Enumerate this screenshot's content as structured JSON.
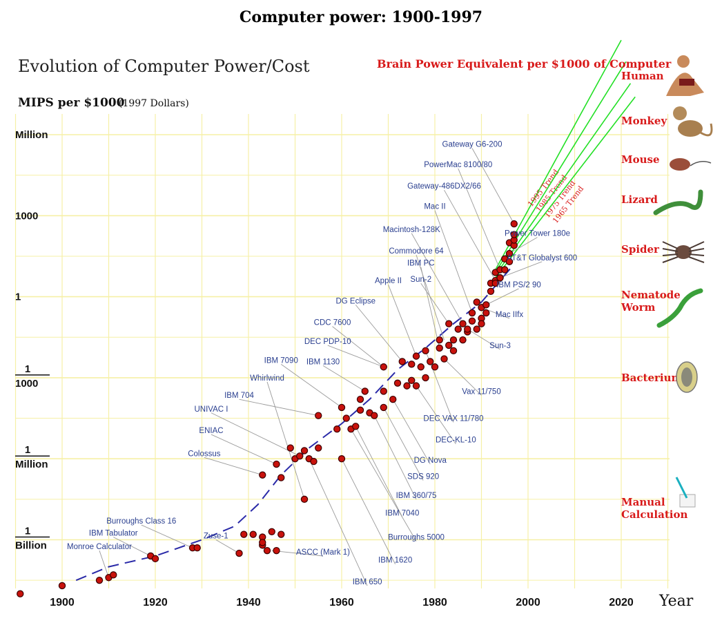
{
  "page_title": "Computer power: 1900-1997",
  "chart_data": {
    "type": "scatter",
    "title": "Evolution of Computer Power/Cost",
    "ylabel": "MIPS per $1000",
    "ylabel_note": "(1997 Dollars)",
    "xlabel": "Year",
    "xlim": [
      1891,
      2030
    ],
    "ylim_log10": [
      -11,
      6.5
    ],
    "y_scale": "log",
    "grid": true,
    "x_ticks": [
      1900,
      1920,
      1940,
      1960,
      1980,
      2000,
      2020
    ],
    "y_ticks": [
      {
        "value": 1000000,
        "label_num": "",
        "label_den": "Million"
      },
      {
        "value": 1000,
        "label_num": "",
        "label_den": "1000"
      },
      {
        "value": 1,
        "label_num": "",
        "label_den": "1"
      },
      {
        "value": 0.001,
        "label_num": "1",
        "label_den": "1000"
      },
      {
        "value": 1e-06,
        "label_num": "1",
        "label_den": "Million"
      },
      {
        "value": 1e-09,
        "label_num": "1",
        "label_den": "Billion"
      }
    ],
    "points": [
      {
        "x": 1891,
        "y": -11.0
      },
      {
        "x": 1900,
        "y": -10.7
      },
      {
        "x": 1908,
        "y": -10.5
      },
      {
        "x": 1910,
        "y": -10.4
      },
      {
        "x": 1911,
        "y": -10.3
      },
      {
        "x": 1919,
        "y": -9.6
      },
      {
        "x": 1920,
        "y": -9.7
      },
      {
        "x": 1928,
        "y": -9.3
      },
      {
        "x": 1929,
        "y": -9.3
      },
      {
        "x": 1938,
        "y": -9.5
      },
      {
        "x": 1939,
        "y": -8.8
      },
      {
        "x": 1941,
        "y": -8.8
      },
      {
        "x": 1943,
        "y": -8.9
      },
      {
        "x": 1943,
        "y": -9.2
      },
      {
        "x": 1943,
        "y": -9.1
      },
      {
        "x": 1944,
        "y": -9.4
      },
      {
        "x": 1945,
        "y": -8.7
      },
      {
        "x": 1946,
        "y": -9.4
      },
      {
        "x": 1947,
        "y": -8.8
      },
      {
        "x": 1943,
        "y": -6.6
      },
      {
        "x": 1946,
        "y": -6.2
      },
      {
        "x": 1949,
        "y": -5.6
      },
      {
        "x": 1950,
        "y": -6.0
      },
      {
        "x": 1951,
        "y": -5.9
      },
      {
        "x": 1952,
        "y": -5.7
      },
      {
        "x": 1953,
        "y": -6.0
      },
      {
        "x": 1954,
        "y": -6.1
      },
      {
        "x": 1955,
        "y": -5.6
      },
      {
        "x": 1955,
        "y": -4.4
      },
      {
        "x": 1952,
        "y": -7.5
      },
      {
        "x": 1947,
        "y": -6.7
      },
      {
        "x": 1959,
        "y": -4.9
      },
      {
        "x": 1960,
        "y": -4.1
      },
      {
        "x": 1960,
        "y": -6.0
      },
      {
        "x": 1961,
        "y": -4.5
      },
      {
        "x": 1962,
        "y": -4.9
      },
      {
        "x": 1963,
        "y": -4.8
      },
      {
        "x": 1964,
        "y": -3.8
      },
      {
        "x": 1964,
        "y": -4.2
      },
      {
        "x": 1965,
        "y": -3.5
      },
      {
        "x": 1966,
        "y": -4.3
      },
      {
        "x": 1967,
        "y": -4.4
      },
      {
        "x": 1969,
        "y": -3.5
      },
      {
        "x": 1969,
        "y": -4.1
      },
      {
        "x": 1969,
        "y": -2.6
      },
      {
        "x": 1971,
        "y": -3.8
      },
      {
        "x": 1972,
        "y": -3.2
      },
      {
        "x": 1973,
        "y": -2.4
      },
      {
        "x": 1974,
        "y": -3.3
      },
      {
        "x": 1975,
        "y": -2.5
      },
      {
        "x": 1975,
        "y": -3.1
      },
      {
        "x": 1976,
        "y": -2.2
      },
      {
        "x": 1976,
        "y": -3.3
      },
      {
        "x": 1977,
        "y": -2.6
      },
      {
        "x": 1978,
        "y": -2.0
      },
      {
        "x": 1978,
        "y": -3.0
      },
      {
        "x": 1979,
        "y": -2.4
      },
      {
        "x": 1980,
        "y": -2.6
      },
      {
        "x": 1981,
        "y": -1.9
      },
      {
        "x": 1981,
        "y": -1.6
      },
      {
        "x": 1982,
        "y": -2.3
      },
      {
        "x": 1983,
        "y": -1.0
      },
      {
        "x": 1983,
        "y": -1.8
      },
      {
        "x": 1984,
        "y": -1.6
      },
      {
        "x": 1984,
        "y": -2.0
      },
      {
        "x": 1985,
        "y": -1.2
      },
      {
        "x": 1986,
        "y": -1.0
      },
      {
        "x": 1986,
        "y": -1.6
      },
      {
        "x": 1987,
        "y": -1.3
      },
      {
        "x": 1987,
        "y": -1.2
      },
      {
        "x": 1988,
        "y": -0.6
      },
      {
        "x": 1988,
        "y": -0.9
      },
      {
        "x": 1989,
        "y": -0.2
      },
      {
        "x": 1989,
        "y": -1.2
      },
      {
        "x": 1990,
        "y": -0.4
      },
      {
        "x": 1990,
        "y": -0.8
      },
      {
        "x": 1990,
        "y": -1.0
      },
      {
        "x": 1991,
        "y": -0.3
      },
      {
        "x": 1991,
        "y": -0.6
      },
      {
        "x": 1992,
        "y": 0.5
      },
      {
        "x": 1992,
        "y": 0.2
      },
      {
        "x": 1993,
        "y": 0.6
      },
      {
        "x": 1993,
        "y": 0.9
      },
      {
        "x": 1993,
        "y": 0.5
      },
      {
        "x": 1994,
        "y": 0.7
      },
      {
        "x": 1994,
        "y": 1.0
      },
      {
        "x": 1994,
        "y": 0.7
      },
      {
        "x": 1995,
        "y": 1.0
      },
      {
        "x": 1995,
        "y": 1.4
      },
      {
        "x": 1996,
        "y": 1.3
      },
      {
        "x": 1996,
        "y": 2.0
      },
      {
        "x": 1996,
        "y": 1.6
      },
      {
        "x": 1997,
        "y": 1.9
      },
      {
        "x": 1997,
        "y": 2.1
      },
      {
        "x": 1997,
        "y": 2.3
      },
      {
        "x": 1997,
        "y": 2.7
      }
    ],
    "trend_lines": [
      {
        "label": "1995 Trend",
        "x1": 1993,
        "y1": 1.0,
        "x2": 2020,
        "y2": 9.5
      },
      {
        "label": "1985 Trend",
        "x1": 1993,
        "y1": 0.9,
        "x2": 2021,
        "y2": 8.7
      },
      {
        "label": "1975 Trend",
        "x1": 1993,
        "y1": 0.8,
        "x2": 2022,
        "y2": 7.9
      },
      {
        "label": "1965 Trend",
        "x1": 1993,
        "y1": 0.7,
        "x2": 2023,
        "y2": 7.4
      }
    ],
    "dashed_fit": [
      [
        1903,
        -10.5
      ],
      [
        1910,
        -10.0
      ],
      [
        1920,
        -9.6
      ],
      [
        1930,
        -9.0
      ],
      [
        1937,
        -8.5
      ],
      [
        1942,
        -7.7
      ],
      [
        1947,
        -6.6
      ],
      [
        1953,
        -5.6
      ],
      [
        1960,
        -4.7
      ],
      [
        1966,
        -3.8
      ],
      [
        1972,
        -2.7
      ],
      [
        1978,
        -1.9
      ],
      [
        1984,
        -1.0
      ],
      [
        1990,
        -0.2
      ],
      [
        1997,
        1.2
      ]
    ],
    "annotations": [
      {
        "text": "Monroe Calculator",
        "lx": 1908,
        "ly": -9.35,
        "ax": 1910,
        "ay": -10.4
      },
      {
        "text": "IBM Tabulator",
        "lx": 1911,
        "ly": -8.85,
        "ax": 1919,
        "ay": -9.6
      },
      {
        "text": "Burroughs Class 16",
        "lx": 1917,
        "ly": -8.4,
        "ax": 1928,
        "ay": -9.3
      },
      {
        "text": "Zuse-1",
        "lx": 1933,
        "ly": -8.95,
        "ax": 1938,
        "ay": -9.5
      },
      {
        "text": "ASCC (Mark 1)",
        "lx": 1956,
        "ly": -9.55,
        "ax": 1945,
        "ay": -9.4
      },
      {
        "text": "Colossus",
        "lx": 1930.5,
        "ly": -5.9,
        "ax": 1943,
        "ay": -6.6
      },
      {
        "text": "ENIAC",
        "lx": 1932,
        "ly": -5.05,
        "ax": 1946,
        "ay": -6.2
      },
      {
        "text": "UNIVAC I",
        "lx": 1932,
        "ly": -4.25,
        "ax": 1951,
        "ay": -5.9
      },
      {
        "text": "IBM 704",
        "lx": 1938,
        "ly": -3.75,
        "ax": 1955,
        "ay": -4.4
      },
      {
        "text": "Whirlwind",
        "lx": 1944,
        "ly": -3.1,
        "ax": 1952,
        "ay": -7.5
      },
      {
        "text": "IBM 7090",
        "lx": 1947,
        "ly": -2.45,
        "ax": 1960,
        "ay": -4.1
      },
      {
        "text": "IBM 1130",
        "lx": 1956,
        "ly": -2.5,
        "ax": 1965,
        "ay": -3.5
      },
      {
        "text": "DEC PDP-10",
        "lx": 1957,
        "ly": -1.75,
        "ax": 1969,
        "ay": -2.6
      },
      {
        "text": "CDC 7600",
        "lx": 1958,
        "ly": -1.05,
        "ax": 1969,
        "ay": -2.6
      },
      {
        "text": "DG Eclipse",
        "lx": 1963,
        "ly": -0.25,
        "ax": 1973,
        "ay": -2.4
      },
      {
        "text": "Apple II",
        "lx": 1970,
        "ly": 0.5,
        "ax": 1976,
        "ay": -2.2
      },
      {
        "text": "IBM PC",
        "lx": 1977,
        "ly": 1.15,
        "ax": 1981,
        "ay": -1.9
      },
      {
        "text": "Sun-2",
        "lx": 1977,
        "ly": 0.55,
        "ax": 1983,
        "ay": -1.0
      },
      {
        "text": "Commodore 64",
        "lx": 1976,
        "ly": 1.6,
        "ax": 1982,
        "ay": -1.6
      },
      {
        "text": "Macintosh-128K",
        "lx": 1975,
        "ly": 2.4,
        "ax": 1986,
        "ay": -1.0
      },
      {
        "text": "Mac II",
        "lx": 1980,
        "ly": 3.25,
        "ax": 1988,
        "ay": -0.6
      },
      {
        "text": "Gateway-486DX2/66",
        "lx": 1982,
        "ly": 4.0,
        "ax": 1993,
        "ay": 0.6
      },
      {
        "text": "PowerMac 8100/80",
        "lx": 1985,
        "ly": 4.8,
        "ax": 1994,
        "ay": 1.0
      },
      {
        "text": "Gateway G6-200",
        "lx": 1988,
        "ly": 5.55,
        "ax": 1997,
        "ay": 2.7
      },
      {
        "text": "Power Tower 180e",
        "lx": 2002,
        "ly": 2.25,
        "ax": 1996,
        "ay": 1.6
      },
      {
        "text": "AT&T Globalyst 600",
        "lx": 2003,
        "ly": 1.35,
        "ax": 1994,
        "ay": 0.7
      },
      {
        "text": "IBM PS/2 90",
        "lx": 1998,
        "ly": 0.35,
        "ax": 1991,
        "ay": -0.3
      },
      {
        "text": "Mac IIfx",
        "lx": 1996,
        "ly": -0.75,
        "ax": 1990,
        "ay": -0.4
      },
      {
        "text": "Sun-3",
        "lx": 1994,
        "ly": -1.9,
        "ax": 1987,
        "ay": -1.2
      },
      {
        "text": "Vax 11/750",
        "lx": 1990,
        "ly": -3.6,
        "ax": 1982,
        "ay": -2.3
      },
      {
        "text": "DEC VAX 11/780",
        "lx": 1984,
        "ly": -4.6,
        "ax": 1978,
        "ay": -2.0
      },
      {
        "text": "DEC-KL-10",
        "lx": 1984.5,
        "ly": -5.4,
        "ax": 1976,
        "ay": -3.3
      },
      {
        "text": "DG Nova",
        "lx": 1979,
        "ly": -6.15,
        "ax": 1971,
        "ay": -3.8
      },
      {
        "text": "SDS 920",
        "lx": 1977.5,
        "ly": -6.75,
        "ax": 1969,
        "ay": -4.1
      },
      {
        "text": "IBM 360/75",
        "lx": 1976,
        "ly": -7.45,
        "ax": 1967,
        "ay": -4.4
      },
      {
        "text": "IBM 7040",
        "lx": 1973,
        "ly": -8.1,
        "ax": 1963,
        "ay": -4.8
      },
      {
        "text": "Burroughs 5000",
        "lx": 1976,
        "ly": -9.0,
        "ax": 1962,
        "ay": -4.9
      },
      {
        "text": "IBM 1620",
        "lx": 1971.5,
        "ly": -9.85,
        "ax": 1960,
        "ay": -6.0
      },
      {
        "text": "IBM 650",
        "lx": 1965.5,
        "ly": -10.65,
        "ax": 1953,
        "ay": -6.0
      }
    ]
  },
  "brain_panel": {
    "title": "Brain Power Equivalent per $1000 of Computer",
    "items": [
      {
        "label": "Human",
        "label2": "",
        "icon": "human-icon"
      },
      {
        "label": "Monkey",
        "label2": "",
        "icon": "monkey-icon"
      },
      {
        "label": "Mouse",
        "label2": "",
        "icon": "mouse-icon"
      },
      {
        "label": "Lizard",
        "label2": "",
        "icon": "lizard-icon"
      },
      {
        "label": "Spider",
        "label2": "",
        "icon": "spider-icon"
      },
      {
        "label": "Nematode",
        "label2": "Worm",
        "icon": "worm-icon"
      },
      {
        "label": "Bacterium",
        "label2": "",
        "icon": "bacterium-icon"
      },
      {
        "label": "Manual",
        "label2": "Calculation",
        "icon": "manual-calculation-icon"
      }
    ]
  },
  "colors": {
    "grid": "#f6f0a6",
    "point": "#c8120c",
    "point_stroke": "#3a0000",
    "trend": "#22e025",
    "dashed_fit": "#2a2aa8",
    "annotation": "#2a3f8f",
    "leader": "#9a9a9a",
    "brain_text": "#d81a1a"
  }
}
